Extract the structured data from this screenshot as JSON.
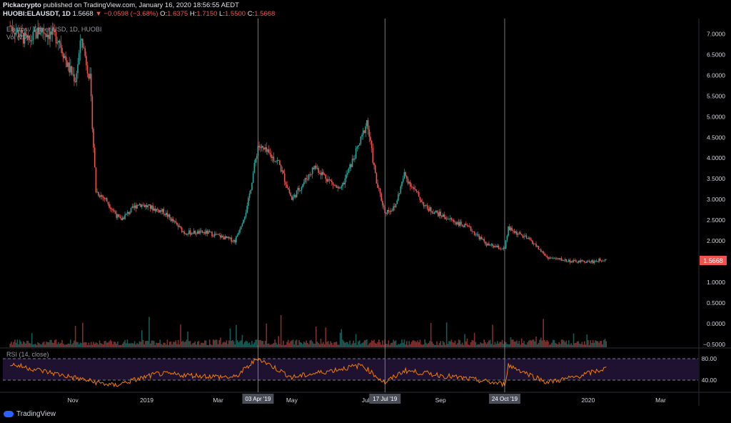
{
  "header": {
    "publisher": "Pickacrypto",
    "published_text": "published on TradingView.com, January 16, 2020 18:56:55 AEDT",
    "symbol": "HUOBI:ELAUSDT, 1D",
    "last": "1.5668",
    "change": "−0.0598 (−3.68%)",
    "open_label": "O:",
    "open": "1.6375",
    "high_label": "H:",
    "high": "1.7150",
    "low_label": "L:",
    "low": "1.5500",
    "close_label": "C:",
    "close": "1.5668"
  },
  "legend": {
    "title": "Elastos / Tether USD, 1D, HUOBI",
    "volume": "Vol (20)",
    "rsi": "RSI (14, close)"
  },
  "footer": {
    "brand": "TradingView"
  },
  "colors": {
    "up": "#26a69a",
    "down": "#ef5350",
    "rsi_line": "#f57c00",
    "rsi_band": "#2a1b3d",
    "crosshair": "#9598a1",
    "price_tag": "#ef5350"
  },
  "chart_data": {
    "type": "candlestick",
    "title": "Elastos / Tether USD, 1D, HUOBI",
    "price_axis": {
      "ticks": [
        "7.0000",
        "6.5000",
        "6.0000",
        "5.5000",
        "5.0000",
        "4.5000",
        "4.0000",
        "3.5000",
        "3.0000",
        "2.5000",
        "2.0000",
        "1.5000",
        "1.0000",
        "0.5000",
        "0.0000",
        "−0.5000"
      ],
      "ylim": [
        -0.5,
        7.3
      ]
    },
    "rsi_axis": {
      "ticks": [
        "80.00",
        "40.00"
      ]
    },
    "time_axis": [
      "Nov",
      "2019",
      "Mar",
      "May",
      "Jul",
      "Sep",
      "2020",
      "Mar"
    ],
    "markers": [
      "03 Apr '19",
      "17 Jul '19",
      "24 Oct '19"
    ],
    "last_price_label": "1.5668",
    "price_series": [
      {
        "x": "2018-09-10",
        "y": 7.2
      },
      {
        "x": "2018-09-25",
        "y": 6.8
      },
      {
        "x": "2018-10-05",
        "y": 7.1
      },
      {
        "x": "2018-10-20",
        "y": 6.9
      },
      {
        "x": "2018-10-28",
        "y": 6.2
      },
      {
        "x": "2018-11-03",
        "y": 5.9
      },
      {
        "x": "2018-11-08",
        "y": 6.9
      },
      {
        "x": "2018-11-15",
        "y": 5.9
      },
      {
        "x": "2018-11-20",
        "y": 3.2
      },
      {
        "x": "2018-11-28",
        "y": 3.0
      },
      {
        "x": "2018-12-10",
        "y": 2.5
      },
      {
        "x": "2018-12-25",
        "y": 2.9
      },
      {
        "x": "2019-01-15",
        "y": 2.7
      },
      {
        "x": "2019-02-01",
        "y": 2.2
      },
      {
        "x": "2019-02-20",
        "y": 2.2
      },
      {
        "x": "2019-03-15",
        "y": 2.0
      },
      {
        "x": "2019-03-25",
        "y": 2.8
      },
      {
        "x": "2019-04-03",
        "y": 4.3
      },
      {
        "x": "2019-04-20",
        "y": 3.9
      },
      {
        "x": "2019-05-01",
        "y": 3.0
      },
      {
        "x": "2019-05-20",
        "y": 3.8
      },
      {
        "x": "2019-06-10",
        "y": 3.2
      },
      {
        "x": "2019-06-28",
        "y": 4.5
      },
      {
        "x": "2019-07-02",
        "y": 4.9
      },
      {
        "x": "2019-07-10",
        "y": 3.4
      },
      {
        "x": "2019-07-17",
        "y": 2.7
      },
      {
        "x": "2019-07-25",
        "y": 2.8
      },
      {
        "x": "2019-08-02",
        "y": 3.6
      },
      {
        "x": "2019-08-20",
        "y": 2.8
      },
      {
        "x": "2019-09-10",
        "y": 2.5
      },
      {
        "x": "2019-09-25",
        "y": 2.3
      },
      {
        "x": "2019-10-10",
        "y": 1.9
      },
      {
        "x": "2019-10-24",
        "y": 1.8
      },
      {
        "x": "2019-10-27",
        "y": 2.3
      },
      {
        "x": "2019-11-15",
        "y": 2.0
      },
      {
        "x": "2019-11-28",
        "y": 1.6
      },
      {
        "x": "2019-12-20",
        "y": 1.5
      },
      {
        "x": "2020-01-05",
        "y": 1.5
      },
      {
        "x": "2020-01-16",
        "y": 1.5668
      }
    ],
    "rsi_series": [
      {
        "x": "2018-09-10",
        "y": 70
      },
      {
        "x": "2018-11-20",
        "y": 36
      },
      {
        "x": "2018-12-05",
        "y": 30
      },
      {
        "x": "2019-01-10",
        "y": 52
      },
      {
        "x": "2019-03-15",
        "y": 45
      },
      {
        "x": "2019-04-03",
        "y": 81
      },
      {
        "x": "2019-05-01",
        "y": 45
      },
      {
        "x": "2019-06-28",
        "y": 68
      },
      {
        "x": "2019-07-17",
        "y": 35
      },
      {
        "x": "2019-08-02",
        "y": 58
      },
      {
        "x": "2019-09-25",
        "y": 42
      },
      {
        "x": "2019-10-24",
        "y": 32
      },
      {
        "x": "2019-10-27",
        "y": 68
      },
      {
        "x": "2019-11-28",
        "y": 36
      },
      {
        "x": "2019-12-20",
        "y": 45
      },
      {
        "x": "2020-01-16",
        "y": 62
      }
    ]
  }
}
